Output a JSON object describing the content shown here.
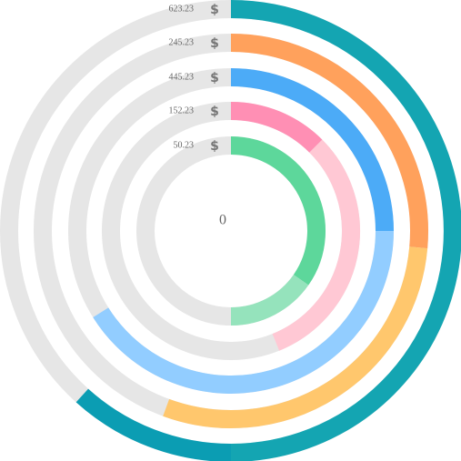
{
  "chart_data": {
    "type": "radial_bar",
    "max": 100,
    "center_label": "0",
    "symbol": "$",
    "track_color": "#e6e6e6",
    "rings": [
      {
        "label": "623.23",
        "segments": [
          {
            "value": 50,
            "color": "#14a5b2"
          },
          {
            "value": 11.7,
            "color": "#0b9db3"
          }
        ]
      },
      {
        "label": "245.23",
        "segments": [
          {
            "value": 26.4,
            "color": "#ffa15c"
          },
          {
            "value": 29.2,
            "color": "#ffc76d"
          }
        ]
      },
      {
        "label": "445.23",
        "segments": [
          {
            "value": 25,
            "color": "#4cabf7"
          },
          {
            "value": 41.1,
            "color": "#92cdff"
          }
        ]
      },
      {
        "label": "152.23",
        "segments": [
          {
            "value": 12.5,
            "color": "#ff8fb4"
          },
          {
            "value": 31.4,
            "color": "#ffc8d4"
          }
        ]
      },
      {
        "label": "50.23",
        "segments": [
          {
            "value": 34.7,
            "color": "#5dd79b"
          },
          {
            "value": 15.3,
            "color": "#95e3bc"
          }
        ]
      }
    ]
  }
}
